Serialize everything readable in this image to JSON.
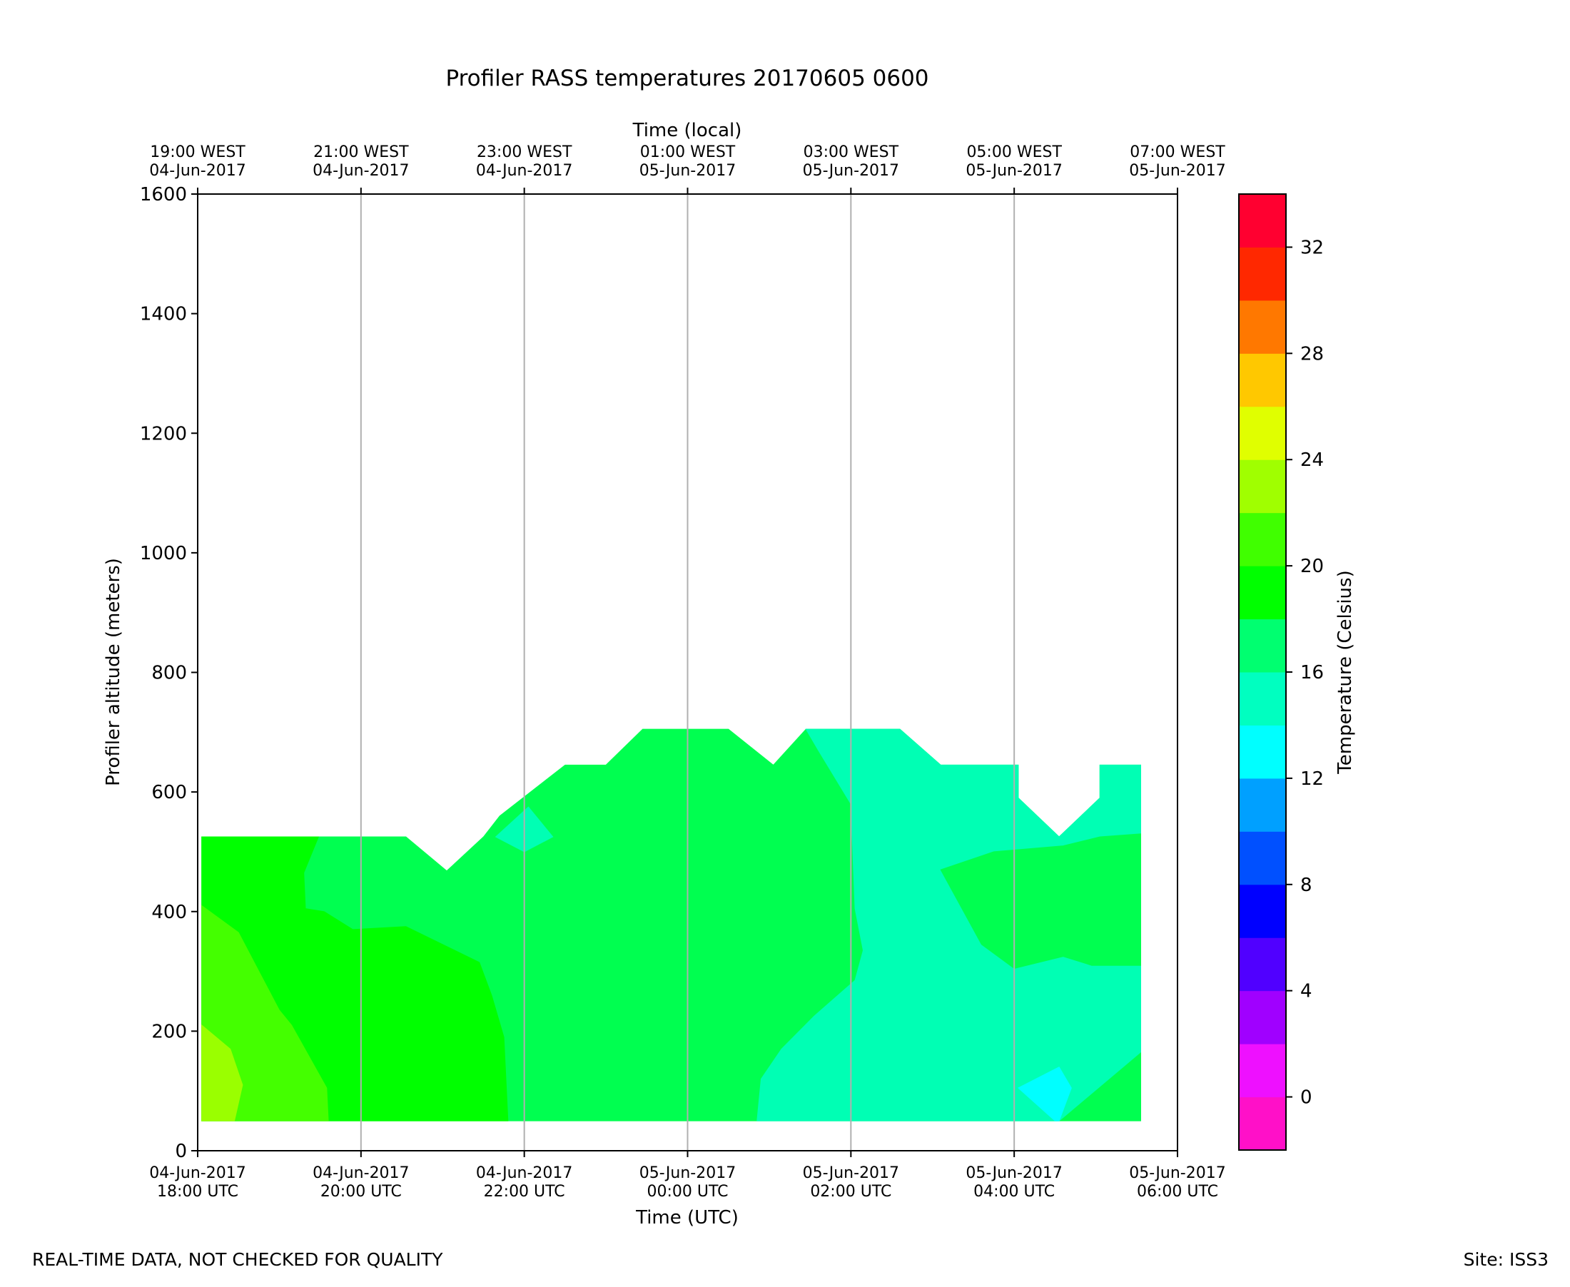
{
  "chart_data": {
    "type": "heatmap",
    "subtype": "filled-contour",
    "title": "Profiler RASS temperatures 20170605 0600",
    "xlabel": "Time (UTC)",
    "xlabel_top": "Time (local)",
    "ylabel": "Profiler altitude (meters)",
    "colorbar_label": "Temperature (Celsius)",
    "xlim_hours": [
      0,
      12
    ],
    "ylim": [
      0,
      1600
    ],
    "y_ticks": [
      0,
      200,
      400,
      600,
      800,
      1000,
      1200,
      1400,
      1600
    ],
    "x_ticks_bottom": [
      {
        "h": 0,
        "line1": "04-Jun-2017",
        "line2": "18:00 UTC"
      },
      {
        "h": 2,
        "line1": "04-Jun-2017",
        "line2": "20:00 UTC"
      },
      {
        "h": 4,
        "line1": "04-Jun-2017",
        "line2": "22:00 UTC"
      },
      {
        "h": 6,
        "line1": "05-Jun-2017",
        "line2": "00:00 UTC"
      },
      {
        "h": 8,
        "line1": "05-Jun-2017",
        "line2": "02:00 UTC"
      },
      {
        "h": 10,
        "line1": "05-Jun-2017",
        "line2": "04:00 UTC"
      },
      {
        "h": 12,
        "line1": "05-Jun-2017",
        "line2": "06:00 UTC"
      }
    ],
    "x_ticks_top": [
      {
        "h": 0,
        "line1": "19:00 WEST",
        "line2": "04-Jun-2017"
      },
      {
        "h": 2,
        "line1": "21:00 WEST",
        "line2": "04-Jun-2017"
      },
      {
        "h": 4,
        "line1": "23:00 WEST",
        "line2": "04-Jun-2017"
      },
      {
        "h": 6,
        "line1": "01:00 WEST",
        "line2": "05-Jun-2017"
      },
      {
        "h": 8,
        "line1": "03:00 WEST",
        "line2": "05-Jun-2017"
      },
      {
        "h": 10,
        "line1": "05:00 WEST",
        "line2": "05-Jun-2017"
      },
      {
        "h": 12,
        "line1": "07:00 WEST",
        "line2": "05-Jun-2017"
      }
    ],
    "vertical_grid_hours": [
      2,
      4,
      6,
      8,
      10
    ],
    "colorbar": {
      "min": -2,
      "max": 34,
      "step": 2,
      "ticks": [
        0,
        4,
        8,
        12,
        16,
        20,
        24,
        28,
        32
      ],
      "colors": [
        "#ff10c8",
        "#ee10ff",
        "#a000ff",
        "#5000ff",
        "#0000ff",
        "#0050ff",
        "#00a0ff",
        "#00ffff",
        "#00ffc0",
        "#00ff70",
        "#00ff00",
        "#40ff00",
        "#a0ff00",
        "#e0ff00",
        "#ffc800",
        "#ff7800",
        "#ff2800",
        "#ff0030"
      ]
    },
    "regions": [
      {
        "temp_range": [
          16,
          18
        ],
        "color": "#00ff50",
        "points": [
          [
            0.05,
            50
          ],
          [
            0.05,
            525
          ],
          [
            1.48,
            525
          ],
          [
            1.52,
            525
          ],
          [
            2.55,
            525
          ],
          [
            3.05,
            468
          ],
          [
            3.5,
            525
          ],
          [
            3.7,
            560
          ],
          [
            4.5,
            645
          ],
          [
            5.0,
            645
          ],
          [
            5.45,
            705
          ],
          [
            6.5,
            705
          ],
          [
            7.05,
            645
          ],
          [
            7.45,
            705
          ],
          [
            8.6,
            705
          ],
          [
            9.1,
            645
          ],
          [
            10.05,
            645
          ],
          [
            10.05,
            590
          ],
          [
            10.55,
            525
          ],
          [
            11.05,
            590
          ],
          [
            11.05,
            645
          ],
          [
            11.55,
            645
          ],
          [
            11.55,
            530
          ],
          [
            11.55,
            50
          ]
        ]
      },
      {
        "temp_range": [
          14,
          16
        ],
        "color": "#00ffb4",
        "points": [
          [
            6.85,
            50
          ],
          [
            6.9,
            120
          ],
          [
            7.15,
            170
          ],
          [
            7.55,
            225
          ],
          [
            8.05,
            285
          ],
          [
            8.15,
            335
          ],
          [
            8.05,
            405
          ],
          [
            8.0,
            580
          ],
          [
            7.6,
            670
          ],
          [
            7.45,
            705
          ],
          [
            8.6,
            705
          ],
          [
            9.1,
            645
          ],
          [
            10.05,
            645
          ],
          [
            10.05,
            590
          ],
          [
            10.55,
            525
          ],
          [
            11.05,
            590
          ],
          [
            11.05,
            645
          ],
          [
            11.55,
            645
          ],
          [
            11.55,
            165
          ],
          [
            10.55,
            50
          ]
        ]
      },
      {
        "temp_range": [
          14,
          16
        ],
        "color": "#00ffb4",
        "points": [
          [
            3.65,
            525
          ],
          [
            4.0,
            500
          ],
          [
            4.35,
            525
          ],
          [
            4.05,
            575
          ]
        ]
      },
      {
        "temp_range": [
          16,
          18
        ],
        "color": "#00ff50",
        "points": [
          [
            9.1,
            470
          ],
          [
            9.75,
            500
          ],
          [
            10.6,
            510
          ],
          [
            11.05,
            525
          ],
          [
            11.55,
            530
          ],
          [
            11.55,
            310
          ],
          [
            10.95,
            310
          ],
          [
            10.6,
            325
          ],
          [
            10.0,
            305
          ],
          [
            9.6,
            345
          ]
        ]
      },
      {
        "temp_range": [
          12,
          14
        ],
        "color": "#00ffff",
        "points": [
          [
            10.05,
            105
          ],
          [
            10.55,
            140
          ],
          [
            10.7,
            105
          ],
          [
            10.55,
            50
          ],
          [
            10.5,
            50
          ]
        ]
      },
      {
        "temp_range": [
          18,
          20
        ],
        "color": "#00ff00",
        "points": [
          [
            0.05,
            50
          ],
          [
            0.05,
            525
          ],
          [
            1.48,
            525
          ],
          [
            1.3,
            465
          ],
          [
            1.32,
            405
          ],
          [
            1.55,
            400
          ],
          [
            1.9,
            370
          ],
          [
            2.55,
            375
          ],
          [
            3.45,
            315
          ],
          [
            3.6,
            260
          ],
          [
            3.75,
            190
          ],
          [
            3.8,
            50
          ]
        ]
      },
      {
        "temp_range": [
          20,
          22
        ],
        "color": "#44ff00",
        "points": [
          [
            0.05,
            50
          ],
          [
            0.05,
            410
          ],
          [
            0.5,
            365
          ],
          [
            0.75,
            300
          ],
          [
            1.0,
            235
          ],
          [
            1.15,
            210
          ],
          [
            1.58,
            105
          ],
          [
            1.6,
            50
          ]
        ]
      },
      {
        "temp_range": [
          22,
          24
        ],
        "color": "#9aff00",
        "points": [
          [
            0.05,
            50
          ],
          [
            0.05,
            210
          ],
          [
            0.4,
            170
          ],
          [
            0.55,
            110
          ],
          [
            0.45,
            50
          ]
        ]
      }
    ]
  },
  "footer": {
    "left_note": "REAL-TIME DATA, NOT CHECKED FOR QUALITY",
    "site": "Site: ISS3"
  }
}
